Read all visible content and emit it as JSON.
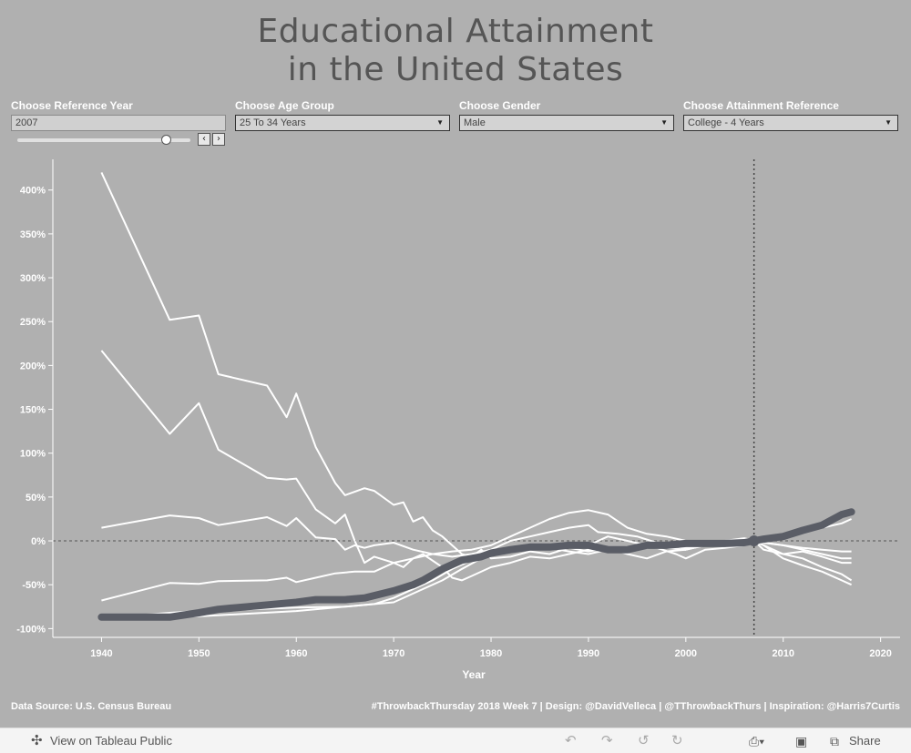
{
  "title_line1": "Educational Attainment",
  "title_line2": "in the United States",
  "filters": [
    {
      "label": "Choose Reference Year",
      "value": "2007"
    },
    {
      "label": "Choose Age Group",
      "value": "25 To 34 Years"
    },
    {
      "label": "Choose Gender",
      "value": "Male"
    },
    {
      "label": "Choose Attainment Reference",
      "value": "College - 4 Years"
    }
  ],
  "slider": {
    "fraction": 0.86,
    "prev_icon": "chevron-left-icon",
    "next_icon": "chevron-right-icon"
  },
  "footer_left": "Data Source: U.S. Census Bureau",
  "footer_right": "#ThrowbackThursday 2018 Week 7 | Design: @DavidVelleca | @TThrowbackThurs | Inspiration: @Harris7Curtis",
  "toolbar": {
    "view_label": "View on Tableau Public",
    "share_label": "Share",
    "icons": [
      "tableau-icon",
      "undo-icon",
      "redo-icon",
      "revert-icon",
      "refresh-icon",
      "download-icon",
      "fullscreen-icon",
      "share-icon"
    ]
  },
  "colors": {
    "background": "#b0b0b0",
    "lines": "#ffffff",
    "highlight": "#5a5d66",
    "title": "#555555"
  },
  "chart_data": {
    "type": "line",
    "xlabel": "Year",
    "ylabel": "",
    "xlim": [
      1935,
      2022
    ],
    "ylim": [
      -110,
      435
    ],
    "x_ticks": [
      1940,
      1950,
      1960,
      1970,
      1980,
      1990,
      2000,
      2010,
      2020
    ],
    "y_ticks": [
      {
        "v": 400,
        "label": "400%"
      },
      {
        "v": 350,
        "label": "350%"
      },
      {
        "v": 300,
        "label": "300%"
      },
      {
        "v": 250,
        "label": "250%"
      },
      {
        "v": 200,
        "label": "200%"
      },
      {
        "v": 150,
        "label": "150%"
      },
      {
        "v": 100,
        "label": "100%"
      },
      {
        "v": 50,
        "label": "50%"
      },
      {
        "v": 0,
        "label": "0%"
      },
      {
        "v": -50,
        "label": "-50%"
      },
      {
        "v": -100,
        "label": "-100%"
      }
    ],
    "reference_year": 2007,
    "zero_line": true,
    "series": [
      {
        "highlight": false,
        "x": [
          1940,
          1947,
          1950,
          1952,
          1957,
          1959,
          1960,
          1962,
          1964,
          1965,
          1967,
          1968,
          1970,
          1971,
          1972,
          1973,
          1974,
          1975,
          1976,
          1977,
          1978,
          1979,
          1980,
          1982,
          1984,
          1986,
          1988,
          1990,
          1991,
          1993,
          1995,
          1997,
          1999,
          2000,
          2002,
          2004,
          2006,
          2007,
          2008,
          2010,
          2012,
          2014,
          2016,
          2017
        ],
        "y": [
          420,
          252,
          257,
          190,
          177,
          141,
          168,
          107,
          66,
          52,
          60,
          57,
          41,
          44,
          22,
          27,
          12,
          5,
          -5,
          -15,
          -18,
          -10,
          -20,
          -18,
          -12,
          -15,
          -8,
          -12,
          -10,
          -8,
          -6,
          -8,
          -15,
          -20,
          -10,
          -8,
          -5,
          0,
          -10,
          -15,
          -20,
          -30,
          -38,
          -45
        ]
      },
      {
        "highlight": false,
        "x": [
          1940,
          1947,
          1950,
          1952,
          1957,
          1959,
          1960,
          1962,
          1964,
          1965,
          1966,
          1967,
          1968,
          1970,
          1971,
          1972,
          1973,
          1975,
          1976,
          1977,
          1978,
          1980,
          1982,
          1984,
          1986,
          1988,
          1990,
          1992,
          1994,
          1996,
          1998,
          2000,
          2002,
          2004,
          2006,
          2007,
          2008,
          2010,
          2012,
          2014,
          2016,
          2017
        ],
        "y": [
          217,
          122,
          157,
          104,
          72,
          70,
          71,
          36,
          20,
          30,
          0,
          -25,
          -18,
          -25,
          -30,
          -20,
          -15,
          -30,
          -42,
          -45,
          -40,
          -30,
          -25,
          -18,
          -20,
          -15,
          -10,
          -8,
          -15,
          -20,
          -12,
          -10,
          -5,
          -5,
          -2,
          0,
          -5,
          -20,
          -28,
          -35,
          -45,
          -50
        ]
      },
      {
        "highlight": false,
        "x": [
          1940,
          1947,
          1950,
          1952,
          1957,
          1959,
          1960,
          1962,
          1964,
          1965,
          1966,
          1967,
          1968,
          1970,
          1972,
          1974,
          1976,
          1978,
          1980,
          1982,
          1984,
          1986,
          1988,
          1990,
          1991,
          1993,
          1995,
          1997,
          1999,
          2000,
          2002,
          2004,
          2006,
          2007,
          2008,
          2010,
          2012,
          2014,
          2016,
          2017
        ],
        "y": [
          15,
          29,
          26,
          18,
          27,
          17,
          26,
          4,
          2,
          -10,
          -5,
          -8,
          -5,
          -2,
          -10,
          -15,
          -18,
          -15,
          -10,
          0,
          5,
          10,
          15,
          18,
          10,
          8,
          5,
          -2,
          -5,
          -10,
          -5,
          0,
          -3,
          0,
          -2,
          -5,
          -8,
          -10,
          -12,
          -12
        ]
      },
      {
        "highlight": false,
        "x": [
          1940,
          1947,
          1950,
          1952,
          1957,
          1959,
          1960,
          1962,
          1964,
          1966,
          1968,
          1970,
          1972,
          1974,
          1976,
          1978,
          1980,
          1982,
          1984,
          1986,
          1988,
          1990,
          1992,
          1994,
          1996,
          1998,
          2000,
          2002,
          2004,
          2006,
          2007,
          2008,
          2010,
          2012,
          2014,
          2016,
          2017
        ],
        "y": [
          -68,
          -48,
          -49,
          -46,
          -45,
          -42,
          -47,
          -42,
          -37,
          -35,
          -35,
          -25,
          -20,
          -15,
          -12,
          -10,
          -5,
          5,
          15,
          25,
          32,
          35,
          30,
          15,
          8,
          5,
          0,
          -5,
          0,
          3,
          0,
          -2,
          -5,
          -10,
          -15,
          -20,
          -20
        ]
      },
      {
        "highlight": false,
        "x": [
          1940,
          1947,
          1950,
          1955,
          1960,
          1965,
          1968,
          1970,
          1972,
          1974,
          1976,
          1978,
          1980,
          1982,
          1984,
          1986,
          1988,
          1990,
          1992,
          1994,
          1996,
          1998,
          2000,
          2002,
          2004,
          2006,
          2007,
          2008,
          2010,
          2012,
          2014,
          2016,
          2017
        ],
        "y": [
          -88,
          -82,
          -80,
          -78,
          -76,
          -75,
          -72,
          -65,
          -55,
          -45,
          -32,
          -22,
          -15,
          -10,
          -8,
          -5,
          -8,
          -5,
          5,
          0,
          -5,
          -8,
          -10,
          -5,
          0,
          -2,
          0,
          2,
          5,
          10,
          15,
          20,
          25
        ]
      },
      {
        "highlight": false,
        "x": [
          1940,
          1950,
          1960,
          1965,
          1970,
          1973,
          1975,
          1977,
          1979,
          1980,
          1982,
          1984,
          1986,
          1988,
          1990,
          1992,
          1994,
          1996,
          1998,
          2000,
          2002,
          2004,
          2006,
          2007,
          2008,
          2010,
          2012,
          2014,
          2016,
          2017
        ],
        "y": [
          -88,
          -86,
          -80,
          -75,
          -70,
          -55,
          -45,
          -32,
          -20,
          -15,
          -12,
          -10,
          -8,
          -12,
          -15,
          -10,
          -12,
          -8,
          -5,
          -8,
          -5,
          -2,
          0,
          0,
          -5,
          -15,
          -12,
          -18,
          -25,
          -25
        ]
      },
      {
        "highlight": true,
        "x": [
          1940,
          1945,
          1947,
          1950,
          1952,
          1955,
          1960,
          1962,
          1965,
          1967,
          1970,
          1972,
          1973,
          1975,
          1977,
          1979,
          1980,
          1982,
          1984,
          1986,
          1988,
          1990,
          1992,
          1994,
          1996,
          1998,
          2000,
          2002,
          2004,
          2006,
          2007,
          2008,
          2010,
          2012,
          2014,
          2016,
          2017
        ],
        "y": [
          -87,
          -87,
          -87,
          -82,
          -78,
          -75,
          -70,
          -67,
          -67,
          -65,
          -57,
          -50,
          -45,
          -32,
          -22,
          -18,
          -14,
          -10,
          -7,
          -7,
          -5,
          -5,
          -10,
          -10,
          -5,
          -5,
          -3,
          -3,
          -3,
          -2,
          0,
          2,
          5,
          12,
          18,
          30,
          33
        ]
      }
    ]
  }
}
